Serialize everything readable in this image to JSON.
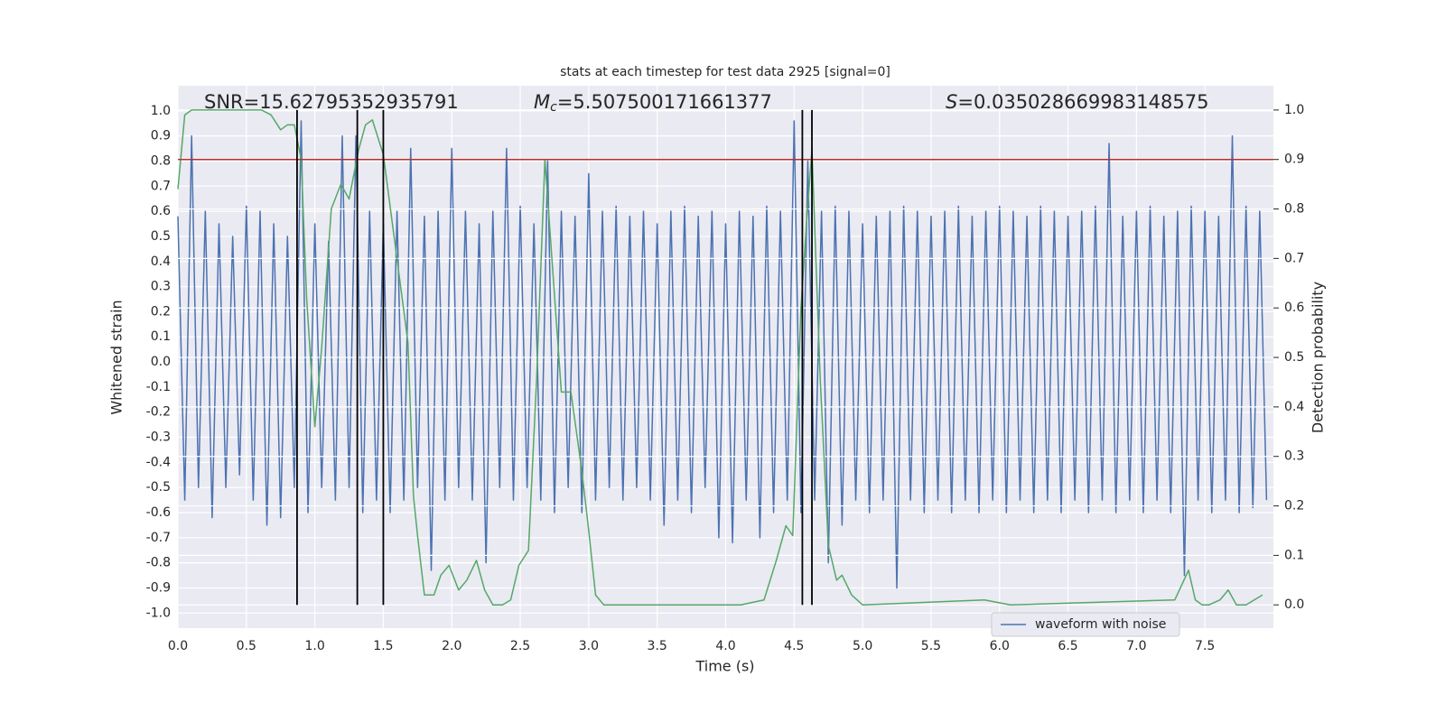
{
  "chart_data": {
    "type": "line",
    "title": "stats at each timestep for test data 2925 [signal=0]",
    "xlabel": "Time (s)",
    "ylabel": "Whitened strain",
    "y2label": "Detection probability",
    "annotations": [
      {
        "text": "SNR=15.62795352935791"
      },
      {
        "symbol": "M",
        "subscript": "c",
        "text": "=5.507500171661377"
      },
      {
        "symbol": "S",
        "text": "=0.035028669983148575"
      }
    ],
    "xlim": [
      0,
      8
    ],
    "ylim": [
      -1.06,
      1.1
    ],
    "y2lim": [
      -0.047,
      1.049
    ],
    "xticks": [
      {
        "value": 0,
        "label": "0.0"
      },
      {
        "value": 0.5,
        "label": "0.5"
      },
      {
        "value": 1,
        "label": "1.0"
      },
      {
        "value": 1.5,
        "label": "1.5"
      },
      {
        "value": 2,
        "label": "2.0"
      },
      {
        "value": 2.5,
        "label": "2.5"
      },
      {
        "value": 3,
        "label": "3.0"
      },
      {
        "value": 3.5,
        "label": "3.5"
      },
      {
        "value": 4,
        "label": "4.0"
      },
      {
        "value": 4.5,
        "label": "4.5"
      },
      {
        "value": 5,
        "label": "5.0"
      },
      {
        "value": 5.5,
        "label": "5.5"
      },
      {
        "value": 6,
        "label": "6.0"
      },
      {
        "value": 6.5,
        "label": "6.5"
      },
      {
        "value": 7,
        "label": "7.0"
      },
      {
        "value": 7.5,
        "label": "7.5"
      }
    ],
    "yticks": [
      {
        "value": -1,
        "label": "-1.0"
      },
      {
        "value": -0.9,
        "label": "-0.9"
      },
      {
        "value": -0.8,
        "label": "-0.8"
      },
      {
        "value": -0.7,
        "label": "-0.7"
      },
      {
        "value": -0.6,
        "label": "-0.6"
      },
      {
        "value": -0.5,
        "label": "-0.5"
      },
      {
        "value": -0.4,
        "label": "-0.4"
      },
      {
        "value": -0.3,
        "label": "-0.3"
      },
      {
        "value": -0.2,
        "label": "-0.2"
      },
      {
        "value": -0.1,
        "label": "-0.1"
      },
      {
        "value": 0,
        "label": "0.0"
      },
      {
        "value": 0.1,
        "label": "0.1"
      },
      {
        "value": 0.2,
        "label": "0.2"
      },
      {
        "value": 0.3,
        "label": "0.3"
      },
      {
        "value": 0.4,
        "label": "0.4"
      },
      {
        "value": 0.5,
        "label": "0.5"
      },
      {
        "value": 0.6,
        "label": "0.6"
      },
      {
        "value": 0.7,
        "label": "0.7"
      },
      {
        "value": 0.8,
        "label": "0.8"
      },
      {
        "value": 0.9,
        "label": "0.9"
      },
      {
        "value": 1,
        "label": "1.0"
      }
    ],
    "y2ticks": [
      {
        "value": 0,
        "label": "0.0"
      },
      {
        "value": 0.1,
        "label": "0.1"
      },
      {
        "value": 0.2,
        "label": "0.2"
      },
      {
        "value": 0.3,
        "label": "0.3"
      },
      {
        "value": 0.4,
        "label": "0.4"
      },
      {
        "value": 0.5,
        "label": "0.5"
      },
      {
        "value": 0.6,
        "label": "0.6"
      },
      {
        "value": 0.7,
        "label": "0.7"
      },
      {
        "value": 0.8,
        "label": "0.8"
      },
      {
        "value": 0.9,
        "label": "0.9"
      },
      {
        "value": 1,
        "label": "1.0"
      }
    ],
    "grid": true,
    "legend": "lower right",
    "series": [
      {
        "name": "waveform with noise",
        "color": "#4c72b0",
        "axis": "y",
        "x": [
          0,
          0.05,
          0.1,
          0.15,
          0.2,
          0.25,
          0.3,
          0.35,
          0.4,
          0.45,
          0.5,
          0.55,
          0.6,
          0.65,
          0.7,
          0.75,
          0.8,
          0.85,
          0.9,
          0.95,
          1,
          1.05,
          1.1,
          1.15,
          1.2,
          1.25,
          1.3,
          1.35,
          1.4,
          1.45,
          1.5,
          1.55,
          1.6,
          1.65,
          1.7,
          1.75,
          1.8,
          1.85,
          1.9,
          1.95,
          2,
          2.05,
          2.1,
          2.15,
          2.2,
          2.25,
          2.3,
          2.35,
          2.4,
          2.45,
          2.5,
          2.55,
          2.6,
          2.65,
          2.7,
          2.75,
          2.8,
          2.85,
          2.9,
          2.95,
          3,
          3.05,
          3.1,
          3.15,
          3.2,
          3.25,
          3.3,
          3.35,
          3.4,
          3.45,
          3.5,
          3.55,
          3.6,
          3.65,
          3.7,
          3.75,
          3.8,
          3.85,
          3.9,
          3.95,
          4,
          4.05,
          4.1,
          4.15,
          4.2,
          4.25,
          4.3,
          4.35,
          4.4,
          4.45,
          4.5,
          4.55,
          4.6,
          4.65,
          4.7,
          4.75,
          4.8,
          4.85,
          4.9,
          4.95,
          5,
          5.05,
          5.1,
          5.15,
          5.2,
          5.25,
          5.3,
          5.35,
          5.4,
          5.45,
          5.5,
          5.55,
          5.6,
          5.65,
          5.7,
          5.75,
          5.8,
          5.85,
          5.9,
          5.95,
          6,
          6.05,
          6.1,
          6.15,
          6.2,
          6.25,
          6.3,
          6.35,
          6.4,
          6.45,
          6.5,
          6.55,
          6.6,
          6.65,
          6.7,
          6.75,
          6.8,
          6.85,
          6.9,
          6.95,
          7,
          7.05,
          7.1,
          7.15,
          7.2,
          7.25,
          7.3,
          7.35,
          7.4,
          7.45,
          7.5,
          7.55,
          7.6,
          7.65,
          7.7,
          7.75,
          7.8,
          7.85,
          7.9,
          7.95
        ],
        "values": [
          0.58,
          -0.55,
          0.9,
          -0.5,
          0.6,
          -0.62,
          0.55,
          -0.5,
          0.5,
          -0.45,
          0.62,
          -0.55,
          0.6,
          -0.65,
          0.55,
          -0.62,
          0.5,
          -0.5,
          0.96,
          -0.6,
          0.55,
          -0.5,
          0.48,
          -0.55,
          0.9,
          -0.5,
          0.9,
          -0.6,
          0.6,
          -0.55,
          0.55,
          -0.6,
          0.6,
          -0.55,
          0.85,
          -0.5,
          0.58,
          -0.83,
          0.6,
          -0.55,
          0.85,
          -0.5,
          0.6,
          -0.55,
          0.55,
          -0.8,
          0.6,
          -0.5,
          0.85,
          -0.55,
          0.62,
          -0.5,
          0.55,
          -0.55,
          0.8,
          -0.6,
          0.6,
          -0.5,
          0.58,
          -0.6,
          0.75,
          -0.55,
          0.6,
          -0.5,
          0.62,
          -0.55,
          0.58,
          -0.5,
          0.6,
          -0.55,
          0.55,
          -0.65,
          0.6,
          -0.55,
          0.62,
          -0.6,
          0.58,
          -0.5,
          0.6,
          -0.7,
          0.55,
          -0.72,
          0.6,
          -0.55,
          0.58,
          -0.7,
          0.62,
          -0.6,
          0.6,
          -0.55,
          0.96,
          -0.6,
          0.8,
          -0.55,
          0.6,
          -0.8,
          0.62,
          -0.65,
          0.6,
          -0.55,
          0.55,
          -0.6,
          0.58,
          -0.55,
          0.6,
          -0.9,
          0.62,
          -0.55,
          0.6,
          -0.6,
          0.58,
          -0.55,
          0.6,
          -0.6,
          0.62,
          -0.55,
          0.58,
          -0.6,
          0.6,
          -0.55,
          0.62,
          -0.6,
          0.6,
          -0.55,
          0.58,
          -0.6,
          0.62,
          -0.55,
          0.6,
          -0.6,
          0.58,
          -0.55,
          0.6,
          -0.6,
          0.62,
          -0.55,
          0.87,
          -0.6,
          0.58,
          -0.55,
          0.6,
          -0.6,
          0.62,
          -0.55,
          0.58,
          -0.6,
          0.6,
          -0.85,
          0.62,
          -0.55,
          0.6,
          -0.6,
          0.58,
          -0.55,
          0.9,
          -0.6,
          0.62,
          -0.58,
          0.6,
          -0.55
        ]
      },
      {
        "color": "#55a868",
        "axis": "y2",
        "x": [
          0,
          0.05,
          0.1,
          0.61,
          0.68,
          0.75,
          0.8,
          0.85,
          0.9,
          0.94,
          1,
          1.05,
          1.12,
          1.19,
          1.25,
          1.32,
          1.37,
          1.42,
          1.5,
          1.68,
          1.72,
          1.75,
          1.8,
          1.87,
          1.92,
          1.98,
          2.05,
          2.11,
          2.18,
          2.24,
          2.3,
          2.37,
          2.43,
          2.49,
          2.56,
          2.62,
          2.68,
          2.8,
          2.87,
          2.95,
          3,
          3.05,
          3.11,
          3.22,
          3.71,
          3.88,
          4.11,
          4.28,
          4.37,
          4.44,
          4.49,
          4.55,
          4.59,
          4.63,
          4.69,
          4.75,
          4.81,
          4.85,
          4.92,
          5,
          5.89,
          6.08,
          7.28,
          7.33,
          7.38,
          7.43,
          7.48,
          7.53,
          7.61,
          7.67,
          7.73,
          7.8,
          7.86,
          7.92
        ],
        "values": [
          0.84,
          0.99,
          1,
          1,
          0.99,
          0.96,
          0.97,
          0.97,
          0.9,
          0.62,
          0.36,
          0.52,
          0.8,
          0.85,
          0.82,
          0.92,
          0.97,
          0.98,
          0.91,
          0.53,
          0.22,
          0.14,
          0.02,
          0.02,
          0.06,
          0.08,
          0.03,
          0.05,
          0.09,
          0.03,
          0,
          0,
          0.01,
          0.08,
          0.11,
          0.46,
          0.9,
          0.43,
          0.43,
          0.27,
          0.15,
          0.02,
          0,
          0,
          0,
          0,
          0,
          0.01,
          0.09,
          0.16,
          0.14,
          0.6,
          0.77,
          0.92,
          0.46,
          0.12,
          0.05,
          0.06,
          0.02,
          0,
          0.01,
          0,
          0.01,
          0.04,
          0.07,
          0.01,
          0,
          0,
          0.01,
          0.03,
          0,
          0,
          0.01,
          0.02
        ]
      }
    ],
    "hlines": [
      {
        "value": 0.9,
        "axis": "y2",
        "color": "#b8312f"
      }
    ],
    "vlines": {
      "x": [
        0.87,
        1.31,
        1.5,
        4.56,
        4.63
      ],
      "ymin": 0,
      "ymax": 1,
      "axis": "y2",
      "color": "#000000"
    }
  }
}
